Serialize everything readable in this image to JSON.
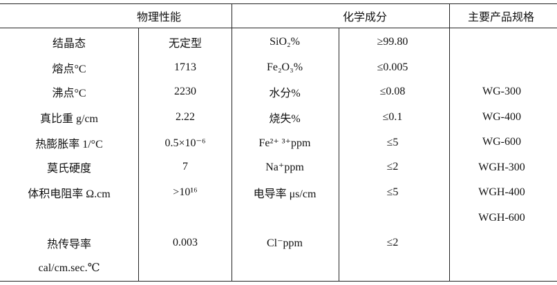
{
  "table": {
    "header": [
      "物理性能",
      "化学成分",
      "主要产品规格"
    ],
    "physical": [
      [
        "结晶态",
        "无定型"
      ],
      [
        "熔点°C",
        "1713"
      ],
      [
        "沸点°C",
        "2230"
      ],
      [
        "真比重 g/cm",
        "2.22"
      ],
      [
        "热膨胀率 1/°C",
        "0.5×10⁻⁶"
      ],
      [
        "莫氏硬度",
        "7"
      ],
      [
        "体积电阻率 Ω.cm",
        ">10¹⁶"
      ],
      [
        "热传导率",
        "0.003"
      ],
      [
        "cal/cm.sec.℃"
      ]
    ],
    "chemical": [
      [
        "SiO₂%",
        "≥99.80"
      ],
      [
        "Fe₂O₃%",
        "≤0.005"
      ],
      [
        "水分%",
        "≤0.08"
      ],
      [
        "烧失%",
        "≤0.1"
      ],
      [
        "Fe²⁺ ³⁺ppm",
        "≤5"
      ],
      [
        "Na⁺ppm",
        "≤2"
      ],
      [
        "电导率 μs/cm",
        "≤5"
      ],
      [
        "Cl⁻ppm",
        "≤2"
      ]
    ],
    "specs": [
      "WG-300",
      "WG-400",
      "WG-600",
      "WGH-300",
      "WGH-400",
      "WGH-600"
    ]
  }
}
